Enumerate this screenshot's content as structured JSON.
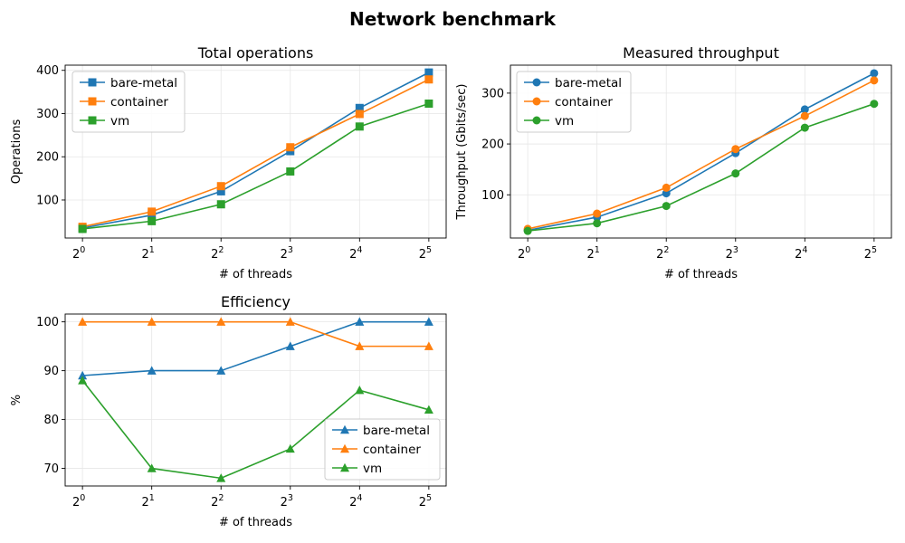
{
  "figure": {
    "title": "Network benchmark"
  },
  "colors": {
    "bare-metal": "#1f77b4",
    "container": "#ff7f0e",
    "vm": "#2ca02c"
  },
  "chart_data": [
    {
      "type": "line",
      "title": "Total operations",
      "xlabel": "# of threads",
      "ylabel": "Operations",
      "x": [
        1,
        2,
        4,
        8,
        16,
        32
      ],
      "x_tick_base": "2",
      "x_tick_exponents": [
        "0",
        "1",
        "2",
        "3",
        "4",
        "5"
      ],
      "x_scale": "log2",
      "ylim": [
        12,
        412
      ],
      "yticks": [
        100,
        200,
        300,
        400
      ],
      "marker": "square",
      "grid": true,
      "legend": "upper left",
      "series": [
        {
          "name": "bare-metal",
          "values": [
            35,
            65,
            120,
            213,
            313,
            395
          ]
        },
        {
          "name": "container",
          "values": [
            38,
            73,
            132,
            222,
            299,
            379
          ]
        },
        {
          "name": "vm",
          "values": [
            33,
            51,
            90,
            166,
            270,
            323
          ]
        }
      ]
    },
    {
      "type": "line",
      "title": "Measured throughput",
      "xlabel": "# of threads",
      "ylabel": "Throughput (Gbits/sec)",
      "x": [
        1,
        2,
        4,
        8,
        16,
        32
      ],
      "x_tick_base": "2",
      "x_tick_exponents": [
        "0",
        "1",
        "2",
        "3",
        "4",
        "5"
      ],
      "x_scale": "log2",
      "ylim": [
        15,
        355
      ],
      "yticks": [
        100,
        200,
        300
      ],
      "marker": "circle",
      "grid": true,
      "legend": "upper left",
      "series": [
        {
          "name": "bare-metal",
          "values": [
            30,
            56,
            103,
            182,
            268,
            339
          ]
        },
        {
          "name": "container",
          "values": [
            33,
            63,
            114,
            190,
            255,
            325
          ]
        },
        {
          "name": "vm",
          "values": [
            29,
            44,
            78,
            142,
            232,
            279
          ]
        }
      ]
    },
    {
      "type": "line",
      "title": "Efficiency",
      "xlabel": "# of threads",
      "ylabel": "%",
      "x": [
        1,
        2,
        4,
        8,
        16,
        32
      ],
      "x_tick_base": "2",
      "x_tick_exponents": [
        "0",
        "1",
        "2",
        "3",
        "4",
        "5"
      ],
      "x_scale": "log2",
      "ylim": [
        66.4,
        101.6
      ],
      "yticks": [
        70,
        80,
        90,
        100
      ],
      "marker": "triangle",
      "grid": true,
      "legend": "lower right",
      "series": [
        {
          "name": "bare-metal",
          "values": [
            89,
            90,
            90,
            95,
            100,
            100
          ]
        },
        {
          "name": "container",
          "values": [
            100,
            100,
            100,
            100,
            95,
            95
          ]
        },
        {
          "name": "vm",
          "values": [
            88,
            70,
            68,
            74,
            86,
            82
          ]
        }
      ]
    }
  ]
}
